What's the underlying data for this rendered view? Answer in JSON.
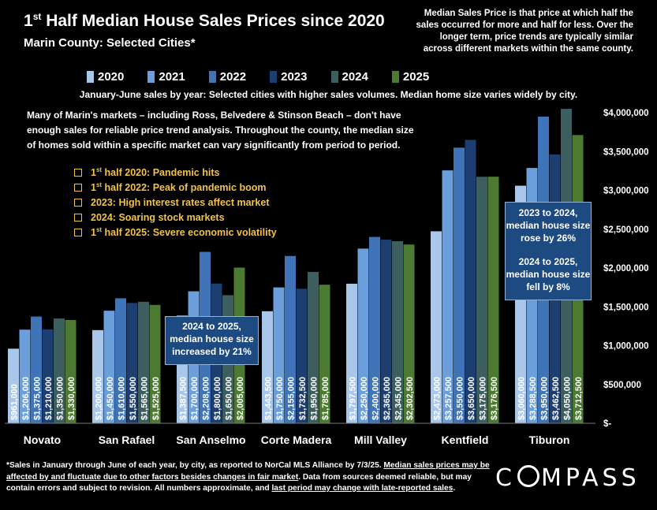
{
  "header": {
    "title_sup": "st",
    "title_lead": "1",
    "title_rest": " Half Median House Sales Prices since 2020",
    "subtitle": "Marin County: Selected Cities*",
    "definition": "Median Sales Price is that price at which half the sales occurred for more and half for less. Over the longer term, price trends are typically similar across different markets within the same county."
  },
  "note_line": "January-June sales by year: Selected cities with higher sales volumes. Median home size varies widely by city.",
  "paragraph": "Many of Marin's markets – including Ross, Belvedere & Stinson Beach – don't have enough sales for reliable price trend analysis. Throughout the county, the median size of homes sold within a specific market can vary significantly from period to period.",
  "events": [
    {
      "lead": "1",
      "sup": "st",
      "rest": " half 2020: Pandemic hits"
    },
    {
      "lead": "1",
      "sup": "st",
      "rest": " half 2022:  Peak of pandemic boom"
    },
    {
      "lead": "2023:  High interest rates affect market",
      "sup": "",
      "rest": ""
    },
    {
      "lead": "2024:  Soaring stock markets",
      "sup": "",
      "rest": ""
    },
    {
      "lead": "1",
      "sup": "st",
      "rest": " half 2025:  Severe economic volatility"
    }
  ],
  "callouts": {
    "anselmo": "2024 to 2025, median house size increased by 21%",
    "tiburon_a": "2023 to 2024, median house size rose by 26%",
    "tiburon_b": "2024 to 2025, median house size fell by 8%"
  },
  "footnote": {
    "p1": "*Sales in January through June of each year, by city, as reported to NorCal MLS Alliance by 7/3/25. ",
    "p2": "Median sales prices may be affected by and fluctuate due to other factors besides changes in fair market",
    "p3": ". Data from sources deemed reliable, but may contain errors and subject to revision. All numbers approximate, and ",
    "p4": "last period may change with late-reported sales",
    "p5": "."
  },
  "logo": {
    "a": "C",
    "b": "MPASS"
  },
  "colors": {
    "2020": "#a9c7ea",
    "2021": "#6a9fdc",
    "2022": "#3f74b8",
    "2023": "#1d3e70",
    "2024": "#3d5e5e",
    "2025": "#4b7a30"
  },
  "chart_data": {
    "type": "bar",
    "categories": [
      "Novato",
      "San Rafael",
      "San Anselmo",
      "Corte Madera",
      "Mill Valley",
      "Kentfield",
      "Tiburon"
    ],
    "series": [
      {
        "name": "2020",
        "values": [
          961000,
          1200000,
          1387500,
          1443500,
          1797500,
          2473000,
          3060000
        ],
        "labels": [
          "$961,000",
          "$1,200,000",
          "$1,387,500",
          "$1,443,500",
          "$1,797,500",
          "$2,473,000",
          "$3,060,000"
        ]
      },
      {
        "name": "2021",
        "values": [
          1206000,
          1450000,
          1700000,
          1750000,
          2250000,
          3257500,
          3288500
        ],
        "labels": [
          "$1,206,000",
          "$1,450,000",
          "$1,700,000",
          "$1,750,000",
          "$2,250,000",
          "$3,257,500",
          "$3,288,500"
        ]
      },
      {
        "name": "2022",
        "values": [
          1375000,
          1610000,
          2208000,
          2155000,
          2400000,
          3550000,
          3950000
        ],
        "labels": [
          "$1,375,000",
          "$1,610,000",
          "$2,208,000",
          "$2,155,000",
          "$2,400,000",
          "$3,550,000",
          "$3,950,000"
        ]
      },
      {
        "name": "2023",
        "values": [
          1210000,
          1550000,
          1800000,
          1732500,
          2365000,
          3650000,
          3462500
        ],
        "labels": [
          "$1,210,000",
          "$1,550,000",
          "$1,800,000",
          "$1,732,500",
          "$2,365,000",
          "$3,650,000",
          "$3,462,500"
        ]
      },
      {
        "name": "2024",
        "values": [
          1350000,
          1565000,
          1650000,
          1950000,
          2345000,
          3175000,
          4050000
        ],
        "labels": [
          "$1,350,000",
          "$1,565,000",
          "$1,650,000",
          "$1,950,000",
          "$2,345,000",
          "$3,175,000",
          "$4,050,000"
        ]
      },
      {
        "name": "2025",
        "values": [
          1330000,
          1525000,
          2005000,
          1785000,
          2302500,
          3176500,
          3712500
        ],
        "labels": [
          "$1,330,000",
          "$1,525,000",
          "$2,005,000",
          "$1,785,000",
          "$2,302,500",
          "$3,176,500",
          "$3,712,500"
        ]
      }
    ],
    "yticks": [
      0,
      500000,
      1000000,
      1500000,
      2000000,
      2500000,
      3000000,
      3500000,
      4000000
    ],
    "ytick_labels": [
      "$-",
      "$500,000",
      "$1,000,000",
      "$1,500,000",
      "$2,000,000",
      "$2,500,000",
      "$3,000,000",
      "$3,500,000",
      "$4,000,000"
    ],
    "ylim": [
      0,
      4000000
    ],
    "legend": "top",
    "grid": false
  }
}
